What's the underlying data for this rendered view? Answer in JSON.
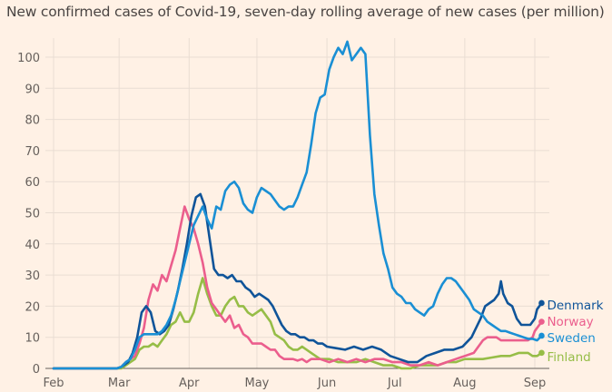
{
  "chart_data": {
    "type": "line",
    "title": "New confirmed cases of Covid-19, seven-day rolling average of new cases (per million)",
    "xlabel": "",
    "ylabel": "",
    "ylim": [
      0,
      105
    ],
    "yticks": [
      0,
      10,
      20,
      30,
      40,
      50,
      60,
      70,
      80,
      90,
      100
    ],
    "xticks": [
      {
        "label": "Feb",
        "day": 0
      },
      {
        "label": "Mar",
        "day": 29
      },
      {
        "label": "Apr",
        "day": 60
      },
      {
        "label": "May",
        "day": 90
      },
      {
        "label": "Jun",
        "day": 121
      },
      {
        "label": "Jul",
        "day": 151
      },
      {
        "label": "Aug",
        "day": 182
      },
      {
        "label": "Sep",
        "day": 213
      }
    ],
    "x_unit": "days since 1 Feb 2020",
    "xlim": [
      0,
      213
    ],
    "grid": true,
    "legend_placement": "right, at line ends",
    "series": [
      {
        "name": "Denmark",
        "color": "#0f5499",
        "x": [
          0,
          28,
          30,
          33,
          35,
          37,
          39,
          41,
          43,
          45,
          47,
          49,
          51,
          53,
          55,
          57,
          59,
          61,
          63,
          65,
          67,
          69,
          71,
          73,
          75,
          77,
          79,
          81,
          83,
          85,
          87,
          89,
          91,
          93,
          95,
          97,
          99,
          101,
          103,
          105,
          107,
          109,
          111,
          113,
          115,
          117,
          119,
          121,
          125,
          129,
          133,
          137,
          141,
          145,
          149,
          153,
          157,
          161,
          165,
          169,
          173,
          177,
          181,
          185,
          189,
          191,
          193,
          195,
          197,
          198,
          199,
          201,
          203,
          205,
          207,
          209,
          211,
          213,
          214,
          216
        ],
        "y": [
          0,
          0,
          0.5,
          2,
          5,
          10,
          18,
          20,
          18,
          12,
          11,
          12,
          14,
          19,
          25,
          32,
          40,
          49,
          55,
          56,
          52,
          42,
          32,
          30,
          30,
          29,
          30,
          28,
          28,
          26,
          25,
          23,
          24,
          23,
          22,
          20,
          17,
          14,
          12,
          11,
          11,
          10,
          10,
          9,
          9,
          8,
          8,
          7,
          6.5,
          6,
          7,
          6,
          7,
          6,
          4,
          3,
          2,
          2,
          4,
          5,
          6,
          6,
          7,
          10,
          16,
          20,
          21,
          22,
          24,
          28,
          24,
          21,
          20,
          16,
          14,
          14,
          14,
          16,
          19,
          21
        ]
      },
      {
        "name": "Norway",
        "color": "#eb5e8d",
        "x": [
          0,
          28,
          30,
          32,
          34,
          36,
          38,
          40,
          42,
          44,
          46,
          48,
          50,
          52,
          54,
          56,
          58,
          60,
          62,
          64,
          66,
          68,
          70,
          72,
          74,
          76,
          78,
          80,
          82,
          84,
          86,
          88,
          90,
          92,
          94,
          96,
          98,
          100,
          102,
          104,
          106,
          108,
          110,
          112,
          114,
          118,
          122,
          126,
          130,
          134,
          138,
          142,
          146,
          150,
          154,
          158,
          162,
          166,
          170,
          174,
          178,
          182,
          186,
          190,
          192,
          194,
          196,
          198,
          200,
          204,
          208,
          210,
          212,
          213,
          214,
          216
        ],
        "y": [
          0,
          0,
          0.5,
          2,
          3,
          4,
          8,
          13,
          22,
          27,
          25,
          30,
          28,
          33,
          38,
          45,
          52,
          48,
          45,
          40,
          34,
          26,
          21,
          19,
          17,
          15,
          17,
          13,
          14,
          11,
          10,
          8,
          8,
          8,
          7,
          6,
          6,
          4,
          3,
          3,
          3,
          2.5,
          3,
          2,
          3,
          3,
          2,
          3,
          2,
          3,
          2,
          3,
          3,
          2,
          2,
          1,
          1,
          2,
          1,
          2,
          3,
          4,
          5,
          9,
          10,
          10,
          10,
          9,
          9,
          9,
          9,
          9,
          10,
          12,
          13,
          15
        ]
      },
      {
        "name": "Sweden",
        "color": "#1a8fd4",
        "x": [
          0,
          28,
          30,
          32,
          34,
          36,
          38,
          40,
          42,
          44,
          46,
          48,
          50,
          52,
          54,
          56,
          58,
          60,
          62,
          64,
          66,
          68,
          70,
          72,
          74,
          76,
          78,
          80,
          82,
          84,
          86,
          88,
          90,
          92,
          94,
          96,
          98,
          100,
          102,
          104,
          106,
          108,
          110,
          112,
          114,
          116,
          118,
          120,
          122,
          124,
          126,
          128,
          130,
          132,
          134,
          136,
          138,
          140,
          142,
          144,
          146,
          148,
          150,
          152,
          154,
          156,
          158,
          160,
          162,
          164,
          166,
          168,
          170,
          172,
          174,
          176,
          178,
          180,
          182,
          184,
          186,
          188,
          190,
          192,
          194,
          196,
          198,
          200,
          202,
          204,
          206,
          208,
          210,
          212,
          214,
          216
        ],
        "y": [
          0,
          0,
          0.5,
          2,
          3,
          6,
          10,
          11,
          11,
          11,
          11,
          12,
          14,
          17,
          22,
          28,
          34,
          40,
          46,
          49,
          52,
          48,
          45,
          52,
          51,
          57,
          59,
          60,
          58,
          53,
          51,
          50,
          55,
          58,
          57,
          56,
          54,
          52,
          51,
          52,
          52,
          55,
          59,
          63,
          72,
          82,
          87,
          88,
          96,
          100,
          103,
          101,
          105,
          99,
          101,
          103,
          101,
          75,
          56,
          46,
          37,
          32,
          26,
          24,
          23,
          21,
          21,
          19,
          18,
          17,
          19,
          20,
          24,
          27,
          29,
          29,
          28,
          26,
          24,
          22,
          19,
          18,
          17,
          15,
          14,
          13,
          12,
          12,
          11.5,
          11,
          10.5,
          10,
          9.5,
          9.5,
          9,
          10.5
        ]
      },
      {
        "name": "Finland",
        "color": "#96bd47",
        "x": [
          0,
          28,
          30,
          32,
          34,
          36,
          38,
          40,
          42,
          44,
          46,
          48,
          50,
          52,
          54,
          56,
          58,
          60,
          62,
          64,
          66,
          68,
          70,
          72,
          74,
          76,
          78,
          80,
          82,
          84,
          86,
          88,
          90,
          92,
          94,
          96,
          98,
          100,
          102,
          104,
          106,
          108,
          110,
          112,
          114,
          118,
          122,
          126,
          130,
          134,
          138,
          142,
          146,
          150,
          154,
          158,
          162,
          166,
          170,
          174,
          178,
          182,
          186,
          190,
          194,
          198,
          202,
          206,
          210,
          212,
          214,
          216
        ],
        "y": [
          0,
          0,
          0,
          1,
          2,
          3,
          6,
          7,
          7,
          8,
          7,
          9,
          11,
          14,
          15,
          18,
          15,
          15,
          18,
          24,
          29,
          24,
          20,
          17,
          17,
          20,
          22,
          23,
          20,
          20,
          18,
          17,
          18,
          19,
          17,
          15,
          11,
          10,
          9,
          7,
          6,
          6,
          7,
          6,
          5,
          3,
          3,
          2,
          2,
          2,
          3,
          2,
          1,
          1,
          0,
          0,
          1,
          1,
          1,
          2,
          2,
          3,
          3,
          3,
          3.5,
          4,
          4,
          5,
          5,
          4,
          4,
          5
        ]
      }
    ]
  }
}
